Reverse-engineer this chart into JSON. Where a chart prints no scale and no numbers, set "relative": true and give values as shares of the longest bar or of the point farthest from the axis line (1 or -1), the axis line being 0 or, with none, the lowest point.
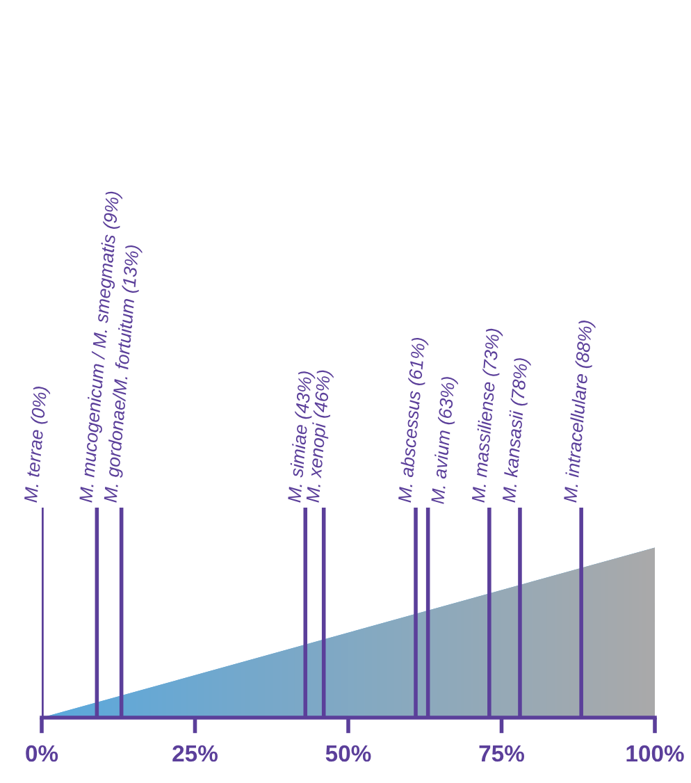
{
  "chart_data": {
    "type": "area",
    "relative": true,
    "series": [
      {
        "x": [
          0,
          100
        ],
        "values": [
          0,
          1
        ],
        "colors": [
          "#5aa8dd",
          "#aaaaaa"
        ]
      }
    ],
    "xlim": [
      0,
      100
    ],
    "xticks": [
      {
        "value": 0,
        "label": "0%"
      },
      {
        "value": 25,
        "label": "25%"
      },
      {
        "value": 50,
        "label": "50%"
      },
      {
        "value": 75,
        "label": "75%"
      },
      {
        "value": 100,
        "label": "100%"
      }
    ],
    "ref_lines": [
      {
        "axis": "x",
        "value": 0,
        "label": "M. terrae (0%)",
        "color": "#5b3f9a"
      },
      {
        "axis": "x",
        "value": 9,
        "label": "M. mucogenicum / M. smegmatis (9%)",
        "color": "#5b3f9a"
      },
      {
        "axis": "x",
        "value": 13,
        "label": "M. gordonae/M. fortuitum (13%)",
        "color": "#5b3f9a"
      },
      {
        "axis": "x",
        "value": 43,
        "label": "M. simiae (43%)",
        "color": "#5b3f9a"
      },
      {
        "axis": "x",
        "value": 46,
        "label": "M. xenopi (46%)",
        "color": "#5b3f9a"
      },
      {
        "axis": "x",
        "value": 61,
        "label": "M. abscessus (61%)",
        "color": "#5b3f9a"
      },
      {
        "axis": "x",
        "value": 63,
        "label": "M. avium (63%)",
        "color": "#5b3f9a"
      },
      {
        "axis": "x",
        "value": 73,
        "label": "M. massiliense (73%)",
        "color": "#5b3f9a"
      },
      {
        "axis": "x",
        "value": 78,
        "label": "M. kansasii (78%)",
        "color": "#5b3f9a"
      },
      {
        "axis": "x",
        "value": 88,
        "label": "M. intracellulare (88%)",
        "color": "#5b3f9a"
      }
    ]
  }
}
